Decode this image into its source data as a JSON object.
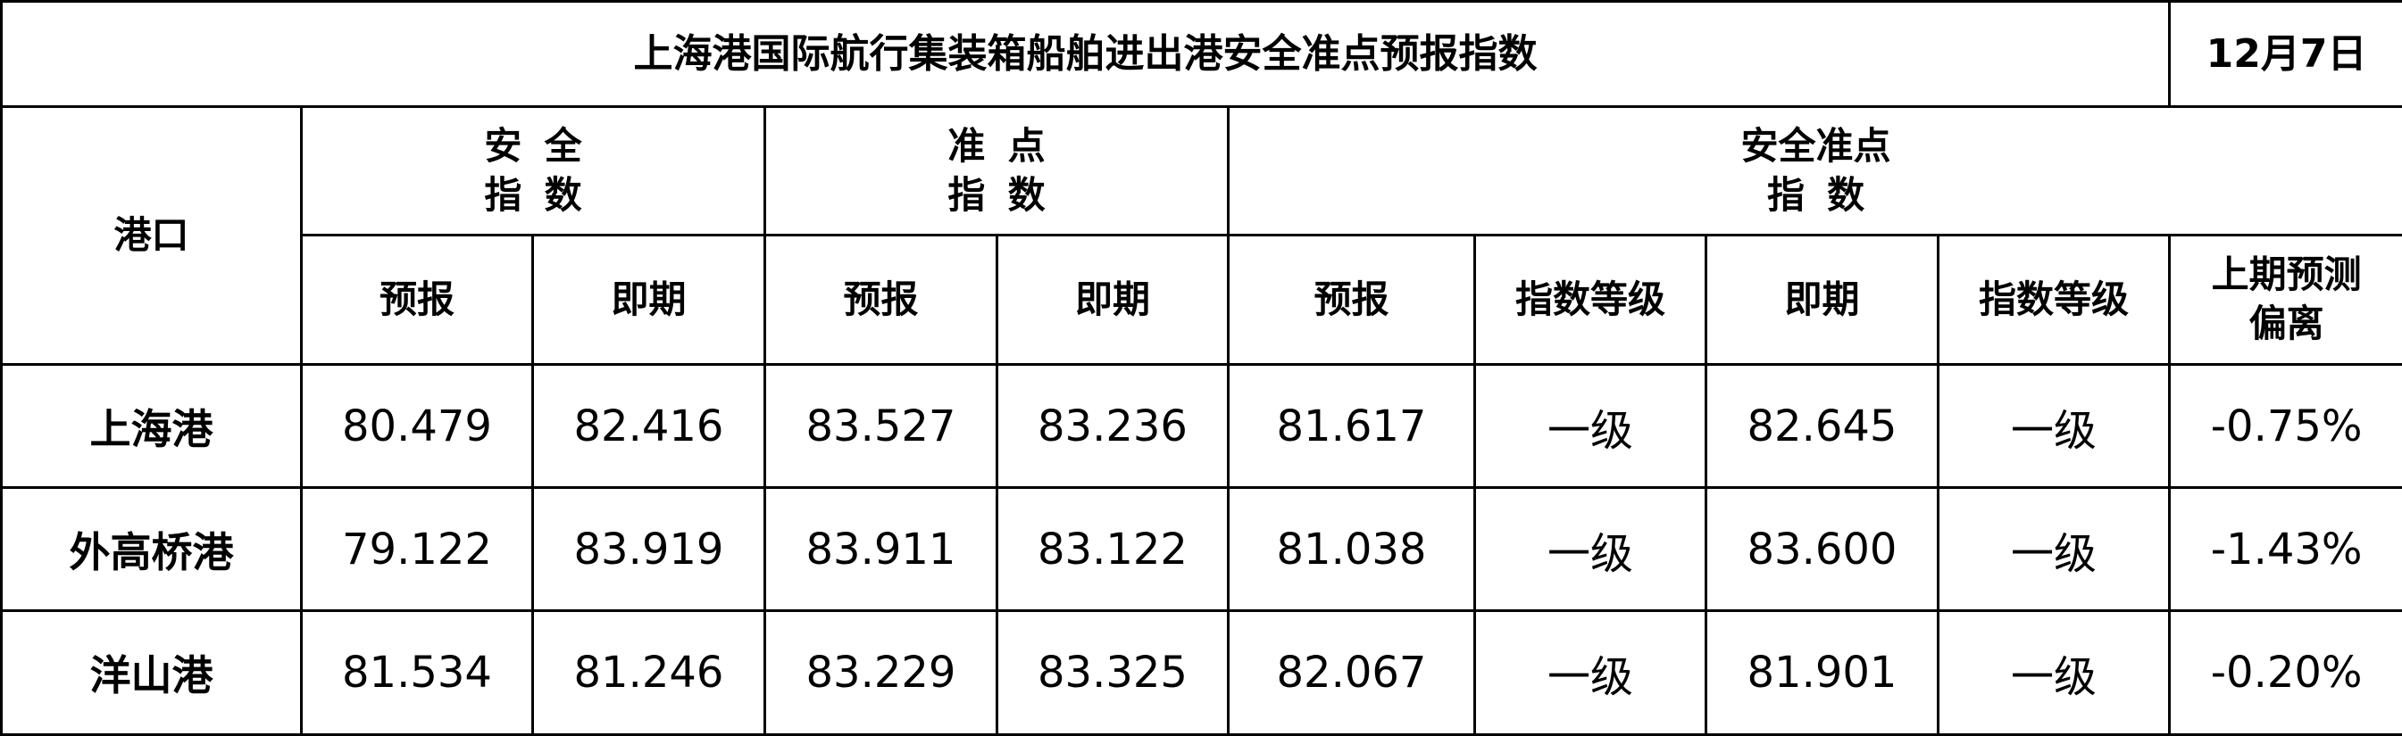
{
  "title": "上海港国际航行集装箱船舶进出港安全准点预报指数",
  "date": "12月7日",
  "headers": {
    "port": "港口",
    "safety_line1": "安全",
    "safety_line2": "指数",
    "punctual_line1": "准点",
    "punctual_line2": "指数",
    "combined_line1": "安全准点",
    "combined_line2": "指数",
    "sub": [
      "预报",
      "即期",
      "预报",
      "即期",
      "预报",
      "指数等级",
      "即期",
      "指数等级"
    ],
    "deviation_line1": "上期预测",
    "deviation_line2": "偏离"
  },
  "rows": [
    {
      "port": "上海港",
      "cells": [
        "80.479",
        "82.416",
        "83.527",
        "83.236",
        "81.617",
        "一级",
        "82.645",
        "一级",
        "-0.75%"
      ]
    },
    {
      "port": "外高桥港",
      "cells": [
        "79.122",
        "83.919",
        "83.911",
        "83.122",
        "81.038",
        "一级",
        "83.600",
        "一级",
        "-1.43%"
      ]
    },
    {
      "port": "洋山港",
      "cells": [
        "81.534",
        "81.246",
        "83.229",
        "83.325",
        "82.067",
        "一级",
        "81.901",
        "一级",
        "-0.20%"
      ]
    }
  ]
}
